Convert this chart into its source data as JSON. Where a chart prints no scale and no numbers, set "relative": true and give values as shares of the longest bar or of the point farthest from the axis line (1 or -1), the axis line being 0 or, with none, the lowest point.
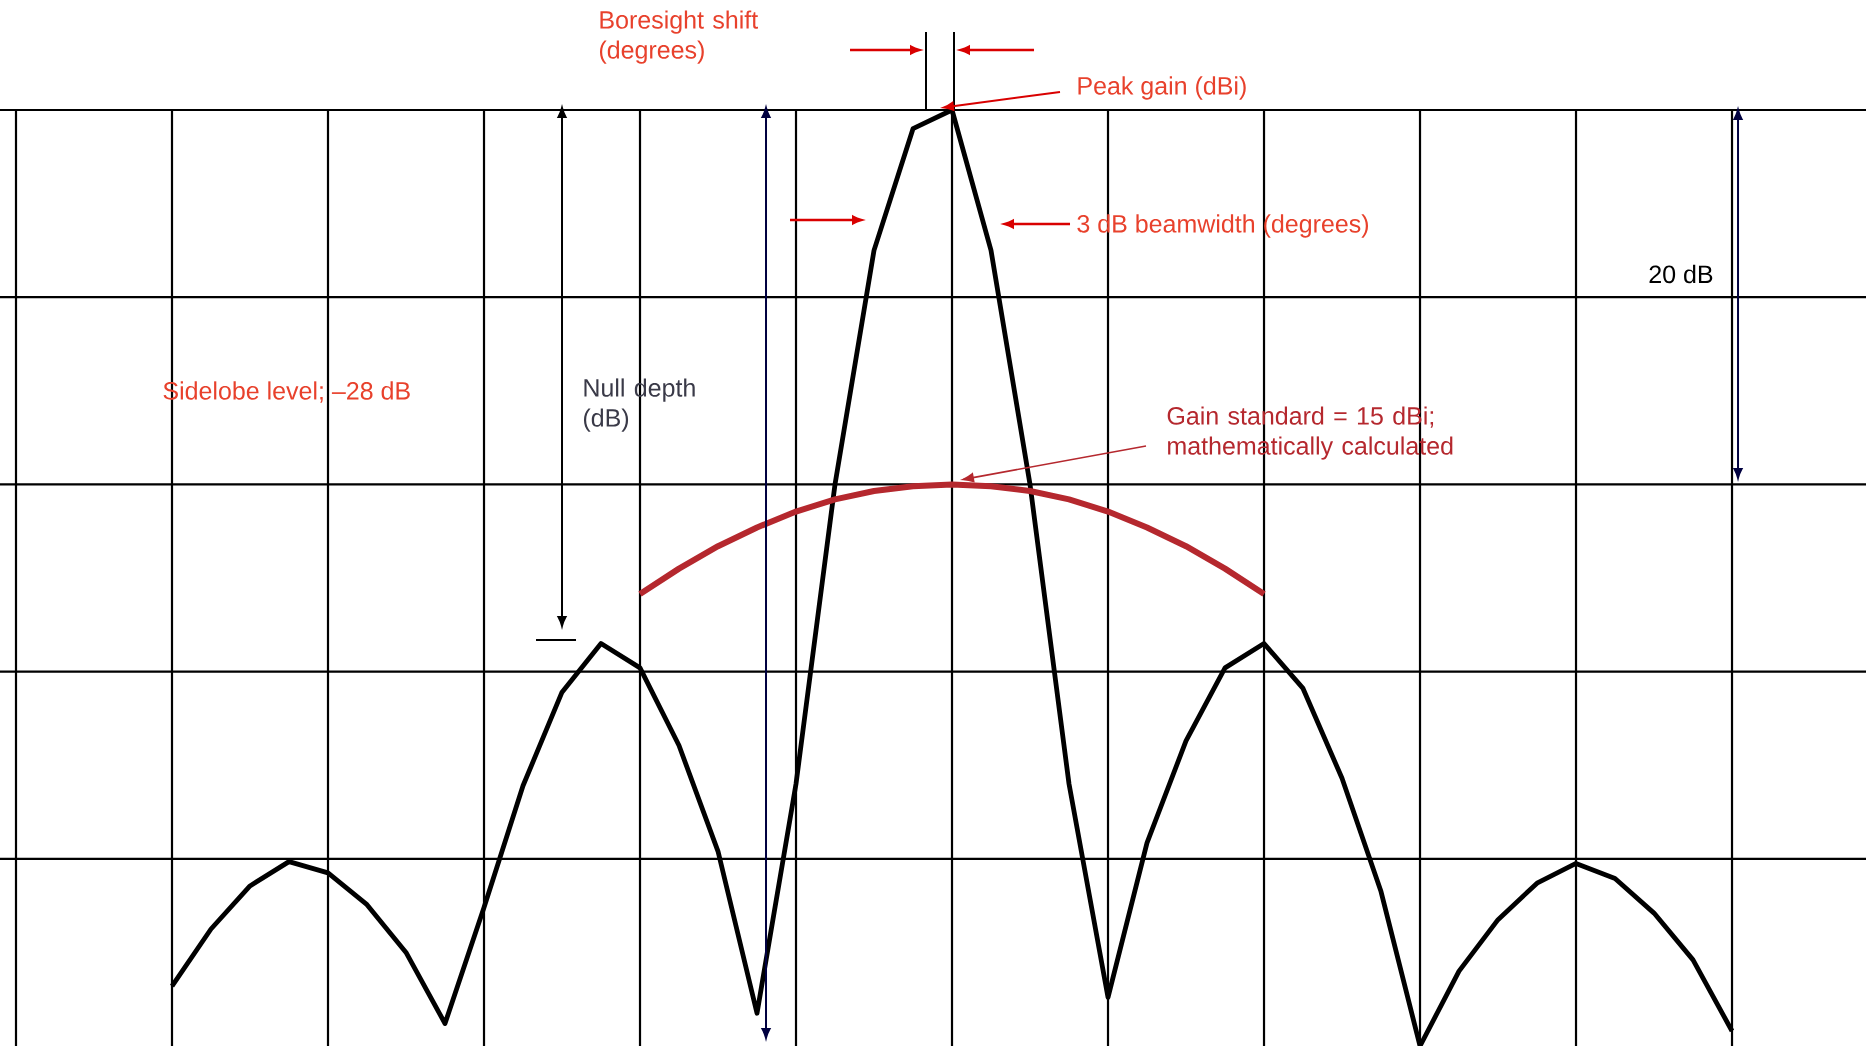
{
  "chart_data": {
    "type": "line",
    "relative": true,
    "grid": true,
    "categories": [
      null,
      null,
      null,
      null,
      null,
      null,
      null,
      null,
      null,
      null,
      null,
      null,
      null,
      null,
      null,
      null,
      null,
      null,
      null,
      null,
      null,
      null,
      null,
      null,
      null,
      null,
      null,
      null,
      null,
      null,
      null,
      null,
      null,
      null,
      null,
      null,
      null,
      null,
      null,
      null,
      null,
      null,
      null,
      null,
      null,
      null,
      null,
      null
    ],
    "series": [
      {
        "color": "#000000",
        "values": [
          null,
          null,
          null,
          null,
          0.064,
          0.125,
          0.171,
          0.197,
          0.185,
          0.151,
          0.1,
          0.024,
          0.148,
          0.278,
          0.378,
          0.43,
          0.404,
          0.321,
          0.208,
          0.035,
          0.28,
          0.6,
          0.85,
          0.98,
          1.0,
          0.85,
          0.6,
          0.28,
          0.052,
          0.217,
          0.326,
          0.404,
          0.43,
          0.382,
          0.286,
          0.165,
          0,
          0.08,
          0.135,
          0.174,
          0.195,
          0.179,
          0.142,
          0.092,
          0.016,
          null,
          null,
          null
        ]
      },
      {
        "color": "#b5282e",
        "values": [
          null,
          null,
          null,
          null,
          null,
          null,
          null,
          null,
          null,
          null,
          null,
          null,
          null,
          null,
          null,
          null,
          0.483,
          0.51,
          0.534,
          0.554,
          0.571,
          0.584,
          0.593,
          0.598,
          0.6,
          0.598,
          0.593,
          0.584,
          0.571,
          0.554,
          0.534,
          0.51,
          0.483,
          null,
          null,
          null,
          null,
          null,
          null,
          null,
          null,
          null,
          null,
          null,
          null,
          null,
          null,
          null
        ]
      }
    ],
    "annotations": [
      "Boresight shift (degrees)",
      "Peak gain (dBi)",
      "3 dB beamwidth (degrees)",
      "20 dB",
      "Sidelobe level; –28 dB",
      "Null depth (dB)",
      "Gain standard = 15 dBi; mathematically calculated"
    ]
  }
}
